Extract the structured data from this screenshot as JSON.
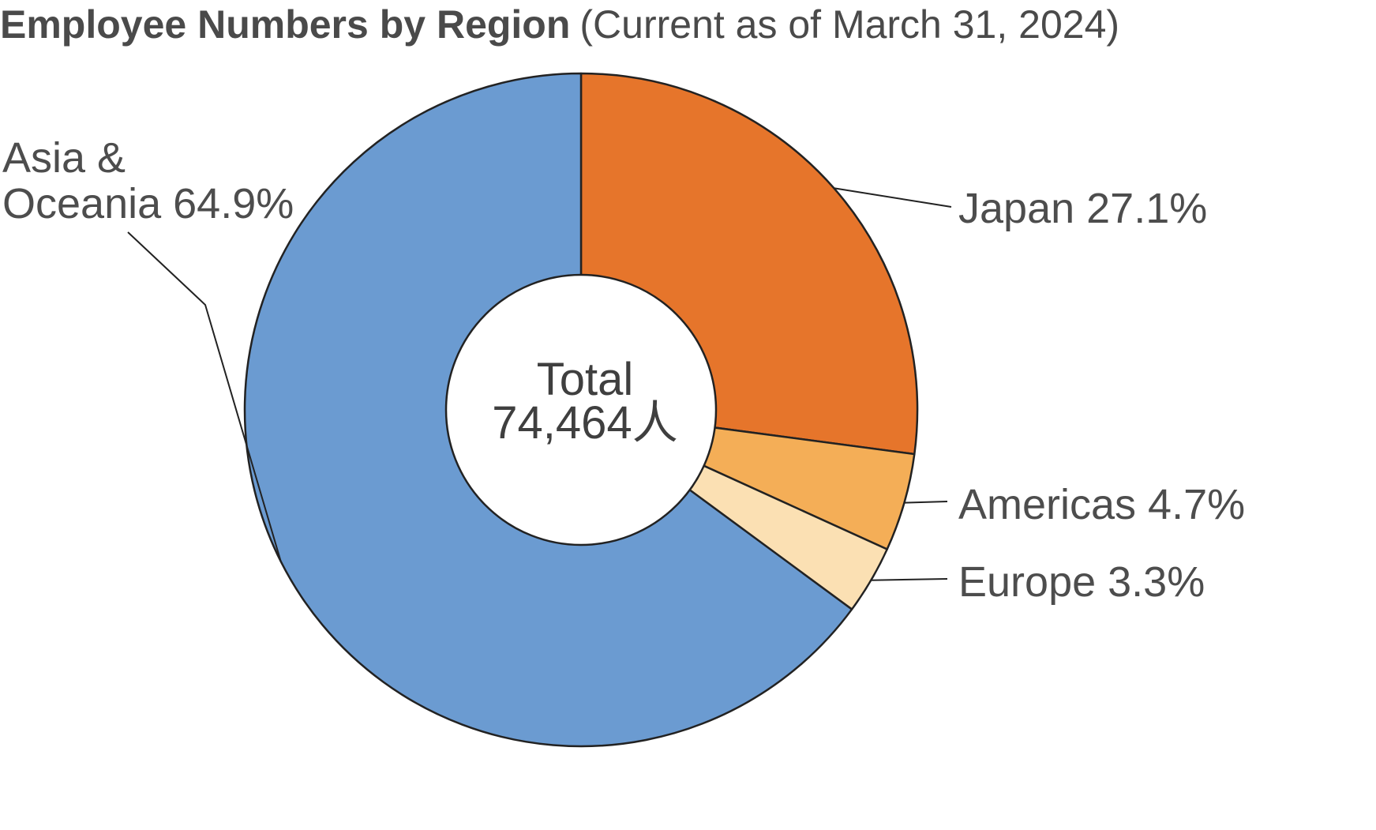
{
  "chart_data": {
    "type": "pie",
    "title": "Employee Numbers by Region",
    "subtitle": "(Current as of March 31, 2024)",
    "center_label": "Total",
    "center_value": "74,464人",
    "slices": [
      {
        "label": "Japan",
        "value": 27.1,
        "value_text": "27.1%",
        "color": "#e6752b"
      },
      {
        "label": "Americas",
        "value": 4.7,
        "value_text": "4.7%",
        "color": "#f4ae57"
      },
      {
        "label": "Europe",
        "value": 3.3,
        "value_text": "3.3%",
        "color": "#fbe0b3"
      },
      {
        "label": "Asia & Oceania",
        "value": 64.9,
        "value_text": "64.9%",
        "color": "#6b9bd1"
      }
    ]
  }
}
